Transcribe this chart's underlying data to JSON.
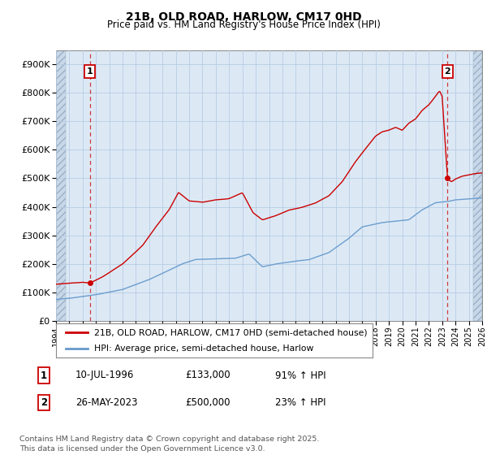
{
  "title": "21B, OLD ROAD, HARLOW, CM17 0HD",
  "subtitle": "Price paid vs. HM Land Registry's House Price Index (HPI)",
  "ylim": [
    0,
    950000
  ],
  "xlim_start": 1994,
  "xlim_end": 2026,
  "red_color": "#cc0000",
  "blue_color": "#6699cc",
  "point1_x": 1996.53,
  "point1_y": 133000,
  "point2_x": 2023.4,
  "point2_y": 500000,
  "legend_label1": "21B, OLD ROAD, HARLOW, CM17 0HD (semi-detached house)",
  "legend_label2": "HPI: Average price, semi-detached house, Harlow",
  "annotation1_label": "1",
  "annotation1_date": "10-JUL-1996",
  "annotation1_price": "£133,000",
  "annotation1_hpi": "91% ↑ HPI",
  "annotation2_label": "2",
  "annotation2_date": "26-MAY-2023",
  "annotation2_price": "£500,000",
  "annotation2_hpi": "23% ↑ HPI",
  "footnote": "Contains HM Land Registry data © Crown copyright and database right 2025.\nThis data is licensed under the Open Government Licence v3.0.",
  "grid_color": "#b8cce4",
  "bg_color": "#dce9f5",
  "hatch_bg": "#c8d8e8"
}
